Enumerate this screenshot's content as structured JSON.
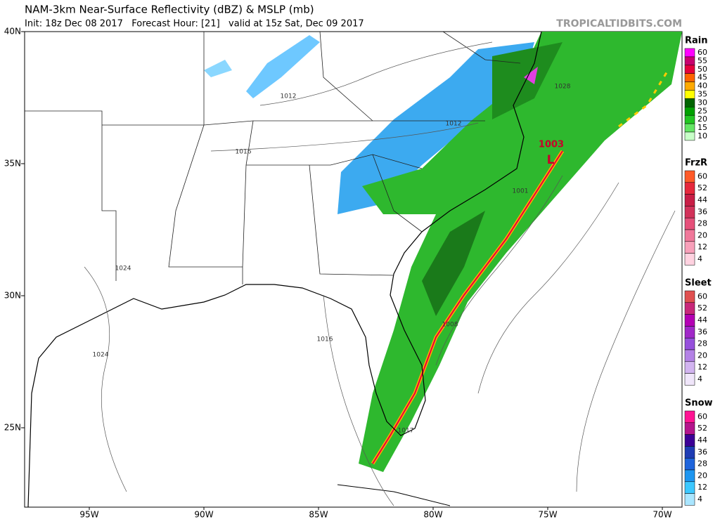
{
  "header": {
    "title": "NAM-3km Near-Surface Reflectivity (dBZ) & MSLP (mb)",
    "subtitle": "Init: 18z Dec 08 2017   Forecast Hour: [21]   valid at 15z Sat, Dec 09 2017",
    "credit": "TROPICALTIDBITS.COM"
  },
  "lat_labels": [
    "40N",
    "35N",
    "30N",
    "25N"
  ],
  "lon_labels": [
    "95W",
    "90W",
    "85W",
    "80W",
    "75W",
    "70W"
  ],
  "legends": [
    {
      "title": "Rain",
      "labels": [
        60,
        55,
        50,
        45,
        40,
        35,
        30,
        25,
        20,
        15,
        10
      ],
      "colors": [
        "#ff00ff",
        "#c8006e",
        "#e6003c",
        "#ff6400",
        "#ffaa00",
        "#ffff00",
        "#006400",
        "#00a000",
        "#22c622",
        "#64e664",
        "#c8ffc8"
      ]
    },
    {
      "title": "FrzR",
      "labels": [
        60,
        52,
        44,
        36,
        28,
        20,
        12,
        4
      ],
      "colors": [
        "#ff5a28",
        "#e6283c",
        "#c81e46",
        "#d2325a",
        "#e6507a",
        "#f0789a",
        "#f8a0ba",
        "#ffd2e0"
      ]
    },
    {
      "title": "Sleet",
      "labels": [
        60,
        52,
        44,
        36,
        28,
        20,
        12,
        4
      ],
      "colors": [
        "#e05050",
        "#c8287a",
        "#b400b4",
        "#a028c8",
        "#9650dc",
        "#b482e6",
        "#d2b4f0",
        "#f0e6fa"
      ]
    },
    {
      "title": "Snow",
      "labels": [
        60,
        52,
        44,
        36,
        28,
        20,
        12,
        4
      ],
      "colors": [
        "#ff1493",
        "#b4148c",
        "#3c0096",
        "#1e3cb4",
        "#1e64dc",
        "#1e96f0",
        "#3cc8ff",
        "#aae6ff"
      ]
    }
  ],
  "map_labels": [
    "1012",
    "1016",
    "1024",
    "1024",
    "1012",
    "1003",
    "L",
    "1001",
    "1008",
    "1016",
    "1017",
    "1028"
  ]
}
